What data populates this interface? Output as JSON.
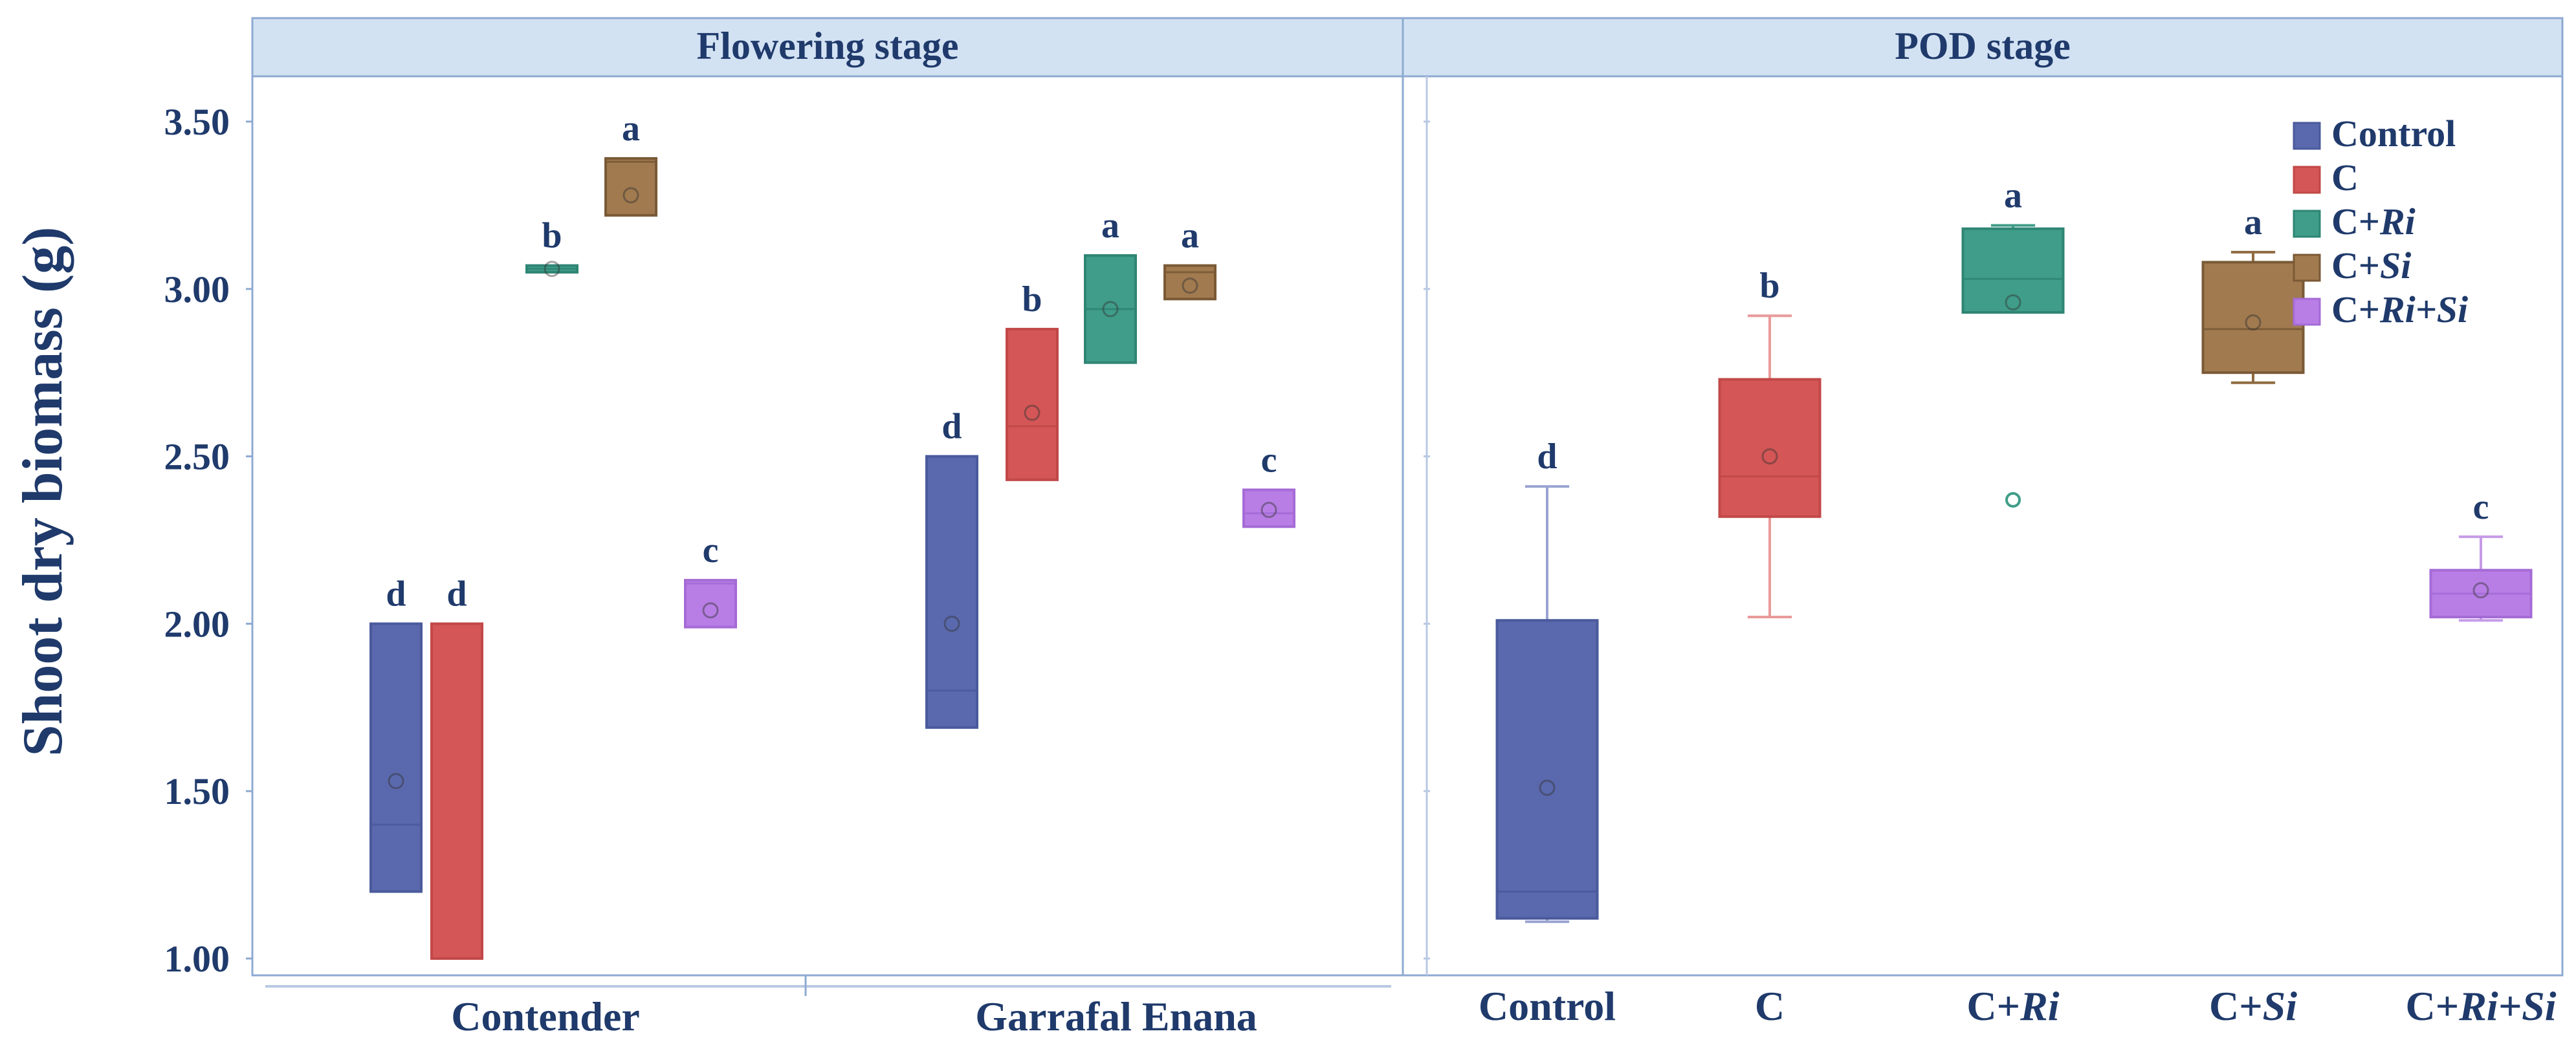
{
  "chart_data": {
    "type": "box",
    "ylabel": "Shoot dry biomass (g)",
    "ylim": [
      0.95,
      3.75
    ],
    "yticks": [
      "1.00",
      "1.50",
      "2.00",
      "2.50",
      "3.00",
      "3.50"
    ],
    "panels": [
      {
        "title": "Flowering stage",
        "categories": [
          "Contender",
          "Garrafal Enana"
        ],
        "groups": [
          {
            "category": "Contender",
            "boxes": [
              {
                "series": "Control",
                "q1": 1.2,
                "median": 1.4,
                "q3": 2.0,
                "mean": 1.53,
                "whisker_low": null,
                "whisker_high": null,
                "letter": "d"
              },
              {
                "series": "C",
                "q1": 1.0,
                "median": null,
                "q3": 2.0,
                "mean": null,
                "whisker_low": null,
                "whisker_high": null,
                "letter": "d"
              },
              {
                "series": "C+Ri",
                "q1": 3.05,
                "median": 3.06,
                "q3": 3.07,
                "mean": 3.06,
                "whisker_low": null,
                "whisker_high": null,
                "letter": "b"
              },
              {
                "series": "C+Si",
                "q1": 3.22,
                "median": 3.38,
                "q3": 3.39,
                "mean": 3.28,
                "whisker_low": null,
                "whisker_high": null,
                "letter": "a"
              },
              {
                "series": "C+Ri+Si",
                "q1": 1.99,
                "median": 2.12,
                "q3": 2.13,
                "mean": 2.04,
                "whisker_low": null,
                "whisker_high": null,
                "letter": "c"
              }
            ]
          },
          {
            "category": "Garrafal Enana",
            "boxes": [
              {
                "series": "Control",
                "q1": 1.69,
                "median": 1.8,
                "q3": 2.5,
                "mean": 2.0,
                "whisker_low": null,
                "whisker_high": null,
                "letter": "d"
              },
              {
                "series": "C",
                "q1": 2.43,
                "median": 2.59,
                "q3": 2.88,
                "mean": 2.63,
                "whisker_low": null,
                "whisker_high": null,
                "letter": "b"
              },
              {
                "series": "C+Ri",
                "q1": 2.78,
                "median": 2.94,
                "q3": 3.1,
                "mean": 2.94,
                "whisker_low": null,
                "whisker_high": null,
                "letter": "a"
              },
              {
                "series": "C+Si",
                "q1": 2.97,
                "median": 3.05,
                "q3": 3.07,
                "mean": 3.01,
                "whisker_low": null,
                "whisker_high": null,
                "letter": "a"
              },
              {
                "series": "C+Ri+Si",
                "q1": 2.29,
                "median": 2.33,
                "q3": 2.4,
                "mean": 2.34,
                "whisker_low": null,
                "whisker_high": null,
                "letter": "c"
              }
            ]
          }
        ]
      },
      {
        "title": "POD stage",
        "categories": [
          "Control",
          "C",
          "C+Ri",
          "C+Si",
          "C+Ri+Si"
        ],
        "boxes": [
          {
            "series": "Control",
            "q1": 1.12,
            "median": 1.2,
            "q3": 2.01,
            "mean": 1.51,
            "whisker_low": 1.11,
            "whisker_high": 2.41,
            "outlier": null,
            "letter": "d"
          },
          {
            "series": "C",
            "q1": 2.32,
            "median": 2.44,
            "q3": 2.73,
            "mean": 2.5,
            "whisker_low": 2.02,
            "whisker_high": 2.92,
            "outlier": null,
            "letter": "b"
          },
          {
            "series": "C+Ri",
            "q1": 2.93,
            "median": 3.03,
            "q3": 3.18,
            "mean": 2.96,
            "whisker_low": null,
            "whisker_high": 3.19,
            "outlier": 2.37,
            "letter": "a"
          },
          {
            "series": "C+Si",
            "q1": 2.75,
            "median": 2.88,
            "q3": 3.08,
            "mean": 2.9,
            "whisker_low": 2.72,
            "whisker_high": 3.11,
            "outlier": null,
            "letter": "a"
          },
          {
            "series": "C+Ri+Si",
            "q1": 2.02,
            "median": 2.09,
            "q3": 2.16,
            "mean": 2.1,
            "whisker_low": 2.01,
            "whisker_high": 2.26,
            "outlier": null,
            "letter": "c"
          }
        ]
      }
    ],
    "legend": {
      "position": "top-right",
      "entries": [
        {
          "series": "Control",
          "label": "Control",
          "prefix": "Control",
          "italic": ""
        },
        {
          "series": "C",
          "label": "C",
          "prefix": "C",
          "italic": ""
        },
        {
          "series": "C+Ri",
          "label": "C+Ri",
          "prefix": "C+",
          "italic": "Ri"
        },
        {
          "series": "C+Si",
          "label": "C+Si",
          "prefix": "C+",
          "italic": "Si"
        },
        {
          "series": "C+Ri+Si",
          "label": "C+Ri+Si",
          "prefix": "C+",
          "italic": "Ri+Si"
        }
      ]
    },
    "colors": {
      "Control": {
        "fill": "#5a69ad",
        "stroke": "#4a5a9c",
        "line": "#9aa4d2"
      },
      "C": {
        "fill": "#d45656",
        "stroke": "#c24848",
        "line": "#e99a9a"
      },
      "C+Ri": {
        "fill": "#3f9d89",
        "stroke": "#2f8574",
        "line": "#3f9d89"
      },
      "C+Si": {
        "fill": "#a17a4f",
        "stroke": "#7a5a36",
        "line": "#8f6a40"
      },
      "C+Ri+Si": {
        "fill": "#b87ee6",
        "stroke": "#a56bd6",
        "line": "#c69be9"
      }
    },
    "title_bar_color": "#d3e2f3",
    "frame_color": "#8eaad2"
  }
}
